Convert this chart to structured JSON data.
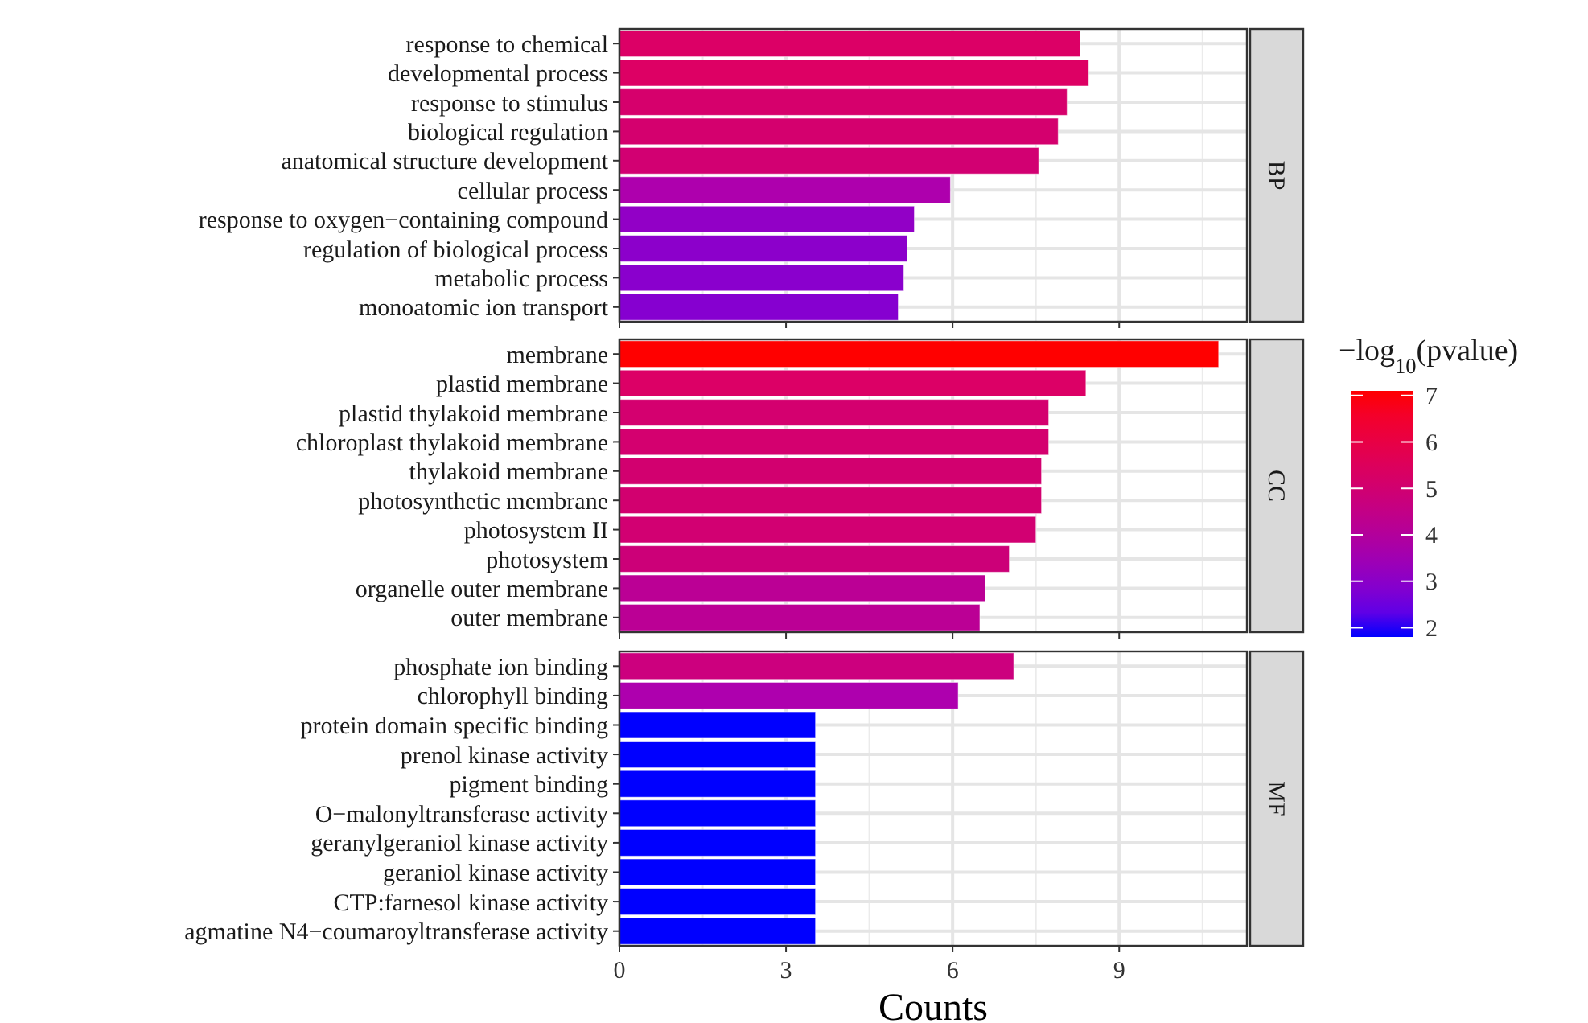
{
  "chart_data": [
    {
      "type": "bar",
      "orientation": "horizontal",
      "annotations": [
        "BP"
      ],
      "categories": [
        "response to chemical",
        "developmental process",
        "response to stimulus",
        "biological regulation",
        "anatomical structure development",
        "cellular process",
        "response to oxygen−containing compound",
        "regulation of biological process",
        "metabolic process",
        "monoatomic ion transport"
      ],
      "values": [
        8.3,
        8.45,
        8.06,
        7.9,
        7.55,
        5.96,
        5.31,
        5.18,
        5.12,
        5.02
      ],
      "colors": [
        "#dc0066",
        "#dd0064",
        "#d6006c",
        "#d4006e",
        "#d20072",
        "#ae00ad",
        "#9200c6",
        "#8c00cb",
        "#8a00cd",
        "#8600d0"
      ],
      "xlim": [
        0,
        11.3
      ],
      "xticks": [
        0,
        3,
        6,
        9
      ],
      "grid": true,
      "tick_labels": "y"
    },
    {
      "type": "bar",
      "orientation": "horizontal",
      "annotations": [
        "CC"
      ],
      "categories": [
        "membrane",
        "plastid membrane",
        "plastid thylakoid membrane",
        "chloroplast thylakoid membrane",
        "thylakoid membrane",
        "photosynthetic membrane",
        "photosystem II",
        "photosystem",
        "organelle outer membrane",
        "outer membrane"
      ],
      "values": [
        10.79,
        8.4,
        7.73,
        7.73,
        7.6,
        7.6,
        7.5,
        7.02,
        6.59,
        6.49
      ],
      "colors": [
        "#ff0000",
        "#dc0066",
        "#d4006f",
        "#d4006f",
        "#d2006f",
        "#d2006f",
        "#d20072",
        "#cc0078",
        "#bb0095",
        "#bb0095"
      ],
      "xlim": [
        0,
        11.3
      ],
      "xticks": [
        0,
        3,
        6,
        9
      ],
      "grid": true,
      "tick_labels": "y",
      "clabel": "−log$_{10}$(pvalue)",
      "clim": [
        1.8,
        7.1
      ],
      "cticks": [
        2,
        3,
        4,
        5,
        6,
        7
      ]
    },
    {
      "type": "bar",
      "orientation": "horizontal",
      "annotations": [
        "MF"
      ],
      "xlabel": "Counts",
      "categories": [
        "phosphate ion binding",
        "chlorophyll binding",
        "protein domain specific binding",
        "prenol kinase activity",
        "pigment binding",
        "O−malonyltransferase activity",
        "geranylgeraniol kinase activity",
        "geraniol kinase activity",
        "CTP:farnesol kinase activity",
        "agmatine N4−coumaroyltransferase activity"
      ],
      "values": [
        7.1,
        6.1,
        3.53,
        3.53,
        3.53,
        3.53,
        3.53,
        3.53,
        3.53,
        3.53
      ],
      "colors": [
        "#cc007e",
        "#ae00ae",
        "#0000ff",
        "#0000ff",
        "#0000ff",
        "#0000ff",
        "#0000ff",
        "#0000ff",
        "#0000ff",
        "#0000ff"
      ],
      "xlim": [
        0,
        11.3
      ],
      "xticks": [
        0,
        3,
        6,
        9
      ],
      "grid": true
    }
  ]
}
